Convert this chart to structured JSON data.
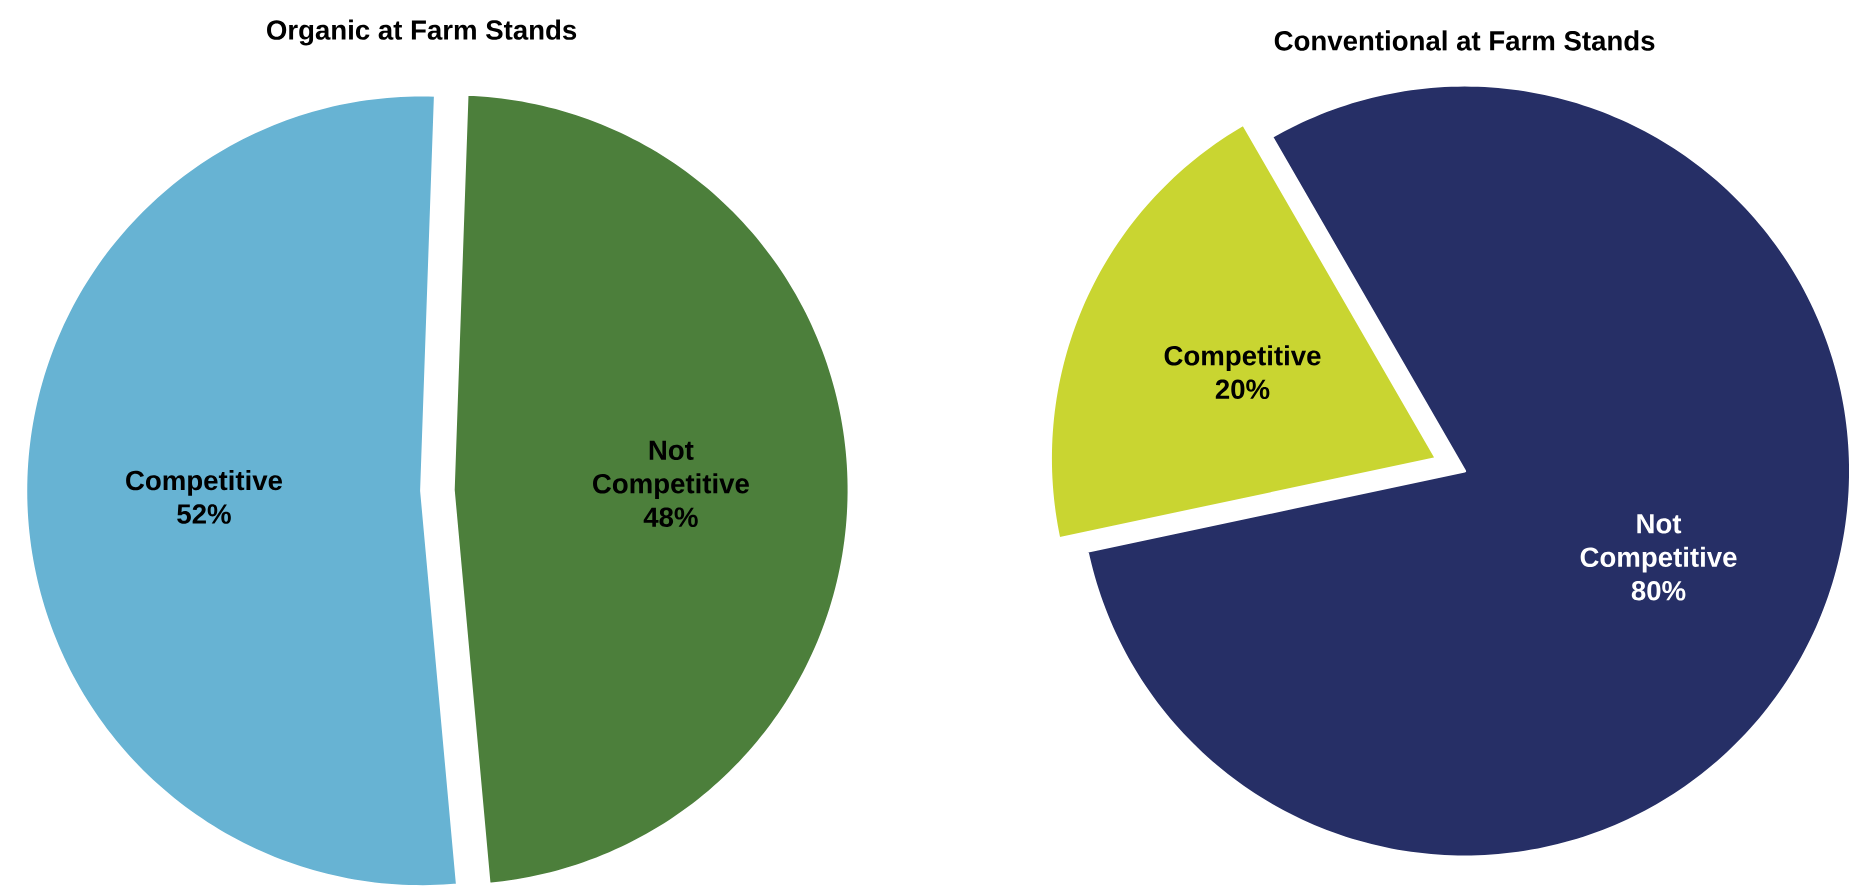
{
  "chart_data": [
    {
      "type": "pie",
      "title": "Organic at Farm Stands",
      "categories": [
        "Competitive",
        "Not Competitive"
      ],
      "values": [
        52,
        48
      ],
      "colors": [
        "#67b3d3",
        "#4c7f3b"
      ],
      "value_labels": [
        "52%",
        "48%"
      ]
    },
    {
      "type": "pie",
      "title": "Conventional at Farm Stands",
      "categories": [
        "Competitive",
        "Not Competitive"
      ],
      "values": [
        20,
        80
      ],
      "colors": [
        "#c9d531",
        "#262f66"
      ],
      "value_labels": [
        "20%",
        "80%"
      ]
    }
  ]
}
